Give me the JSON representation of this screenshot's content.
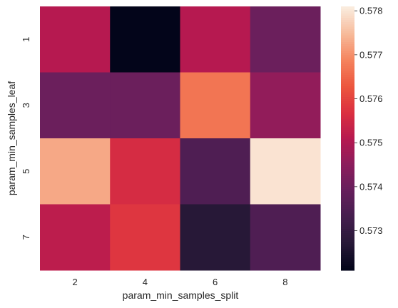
{
  "chart_data": {
    "type": "heatmap",
    "title": "",
    "xlabel": "param_min_samples_split",
    "ylabel": "param_min_samples_leaf",
    "x_categories": [
      "2",
      "4",
      "6",
      "8"
    ],
    "y_categories": [
      "1",
      "3",
      "5",
      "7"
    ],
    "values": [
      [
        0.5751,
        0.5721,
        0.5751,
        0.574
      ],
      [
        0.574,
        0.574,
        0.5767,
        0.5746
      ],
      [
        0.5773,
        0.5756,
        0.5735,
        0.578
      ],
      [
        0.5752,
        0.5758,
        0.5727,
        0.5735
      ]
    ],
    "colorbar": {
      "vmin": 0.5721,
      "vmax": 0.5781,
      "ticks": [
        "0.573",
        "0.574",
        "0.575",
        "0.576",
        "0.577",
        "0.578"
      ],
      "colormap": "rocket"
    }
  }
}
